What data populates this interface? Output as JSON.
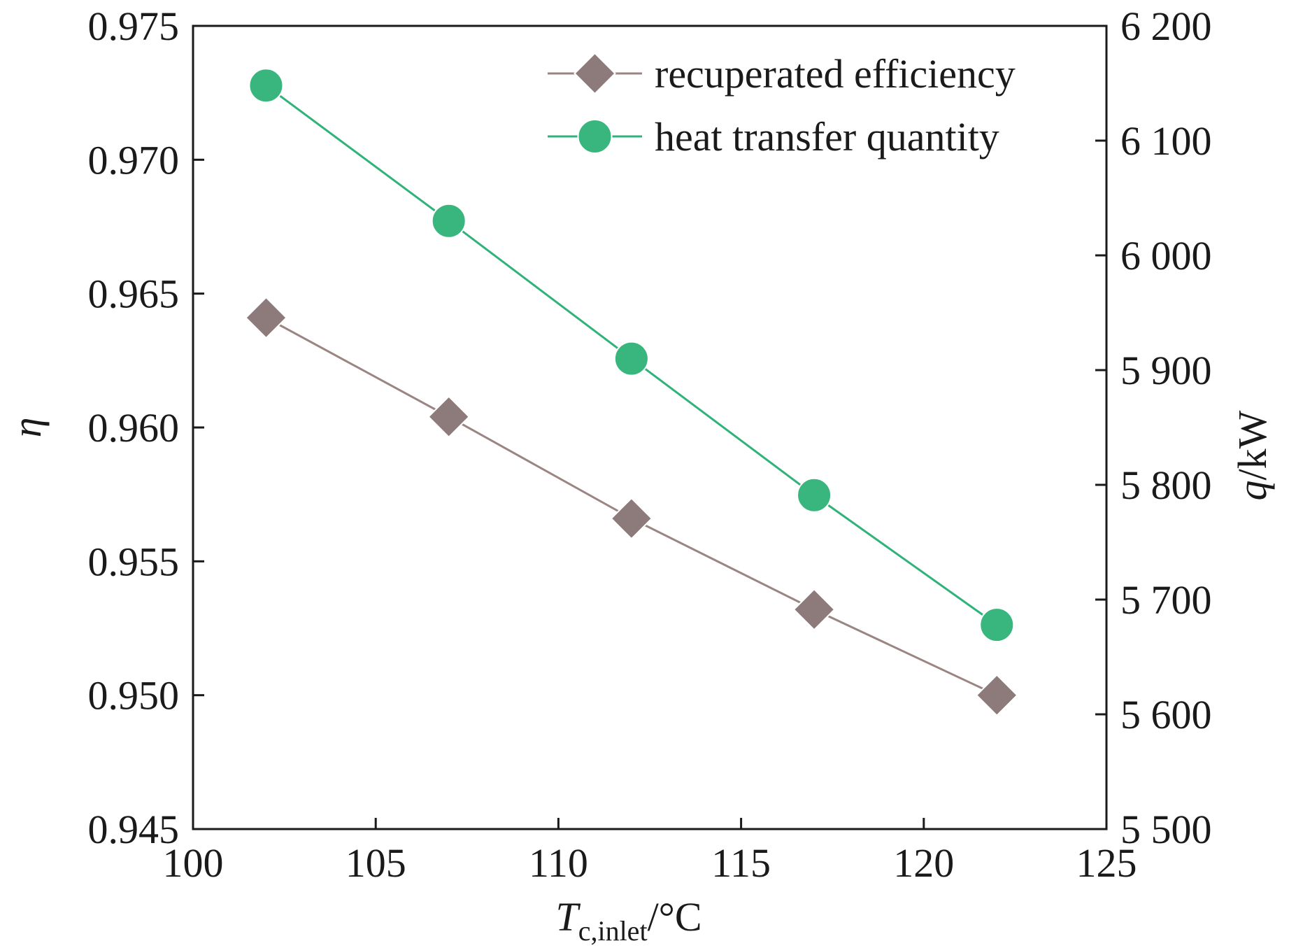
{
  "chart_data": {
    "type": "line",
    "title": "",
    "x": [
      102,
      107,
      112,
      117,
      122
    ],
    "xlim": [
      100,
      125
    ],
    "xticks": [
      100,
      105,
      110,
      115,
      120,
      125
    ],
    "xtick_labels": [
      "100",
      "105",
      "110",
      "115",
      "120",
      "125"
    ],
    "xlabel": {
      "main": "T",
      "sub": "c,inlet",
      "unit": "/°C"
    },
    "ylabel_left": "η",
    "ylim_left": [
      0.945,
      0.975
    ],
    "yticks_left": [
      0.945,
      0.95,
      0.955,
      0.96,
      0.965,
      0.97,
      0.975
    ],
    "ytick_labels_left": [
      "0.945",
      "0.950",
      "0.955",
      "0.960",
      "0.965",
      "0.970",
      "0.975"
    ],
    "ylabel_right": {
      "var": "q",
      "unit": "/kW"
    },
    "ylim_right": [
      5500,
      6200
    ],
    "yticks_right": [
      5500,
      5600,
      5700,
      5800,
      5900,
      6000,
      6100,
      6200
    ],
    "ytick_labels_right": [
      "5 500",
      "5 600",
      "5 700",
      "5 800",
      "5 900",
      "6 000",
      "6 100",
      "6 200"
    ],
    "legend_position": "top-right",
    "series": [
      {
        "name": "recuperated efficiency",
        "axis": "left",
        "marker": "diamond",
        "line_color": "#9b8582",
        "marker_color": "#8c7b7a",
        "values": [
          0.9641,
          0.9604,
          0.9566,
          0.9532,
          0.95
        ]
      },
      {
        "name": "heat transfer quantity",
        "axis": "right",
        "marker": "circle",
        "line_color": "#2fb37a",
        "marker_color": "#39b57e",
        "values": [
          6148,
          6030,
          5910,
          5791,
          5678
        ]
      }
    ]
  }
}
